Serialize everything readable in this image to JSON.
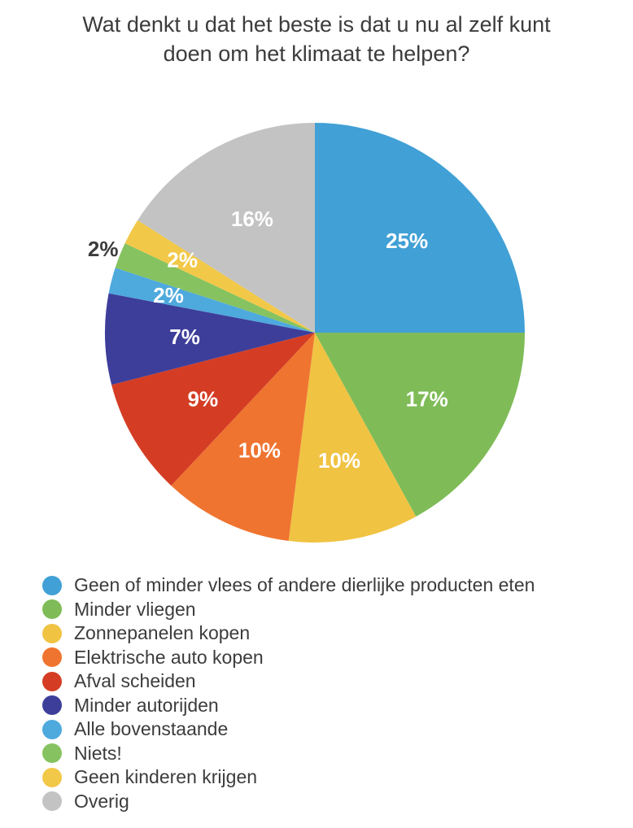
{
  "chart_data": {
    "type": "pie",
    "title": "Wat denkt u dat het beste is dat u nu al zelf kunt doen om het klimaat te helpen?",
    "categories": [
      "Geen of minder vlees of andere dierlijke producten eten",
      "Minder vliegen",
      "Zonnepanelen kopen",
      "Elektrische auto kopen",
      "Afval scheiden",
      "Minder autorijden",
      "Alle bovenstaande",
      "Niets!",
      "Geen kinderen krijgen",
      "Overig"
    ],
    "values": [
      25,
      17,
      10,
      10,
      9,
      7,
      2,
      2,
      2,
      16
    ],
    "labels": [
      "25%",
      "17%",
      "10%",
      "10%",
      "9%",
      "7%",
      "2%",
      "2%",
      "2%",
      "16%"
    ],
    "colors": [
      "#41a0d6",
      "#7fbc58",
      "#f0c343",
      "#ef7430",
      "#d43d24",
      "#3d3e9a",
      "#4ea9dd",
      "#86c360",
      "#f2c848",
      "#c3c3c3"
    ],
    "legend_position": "bottom-left",
    "start_at": "top",
    "direction": "clockwise"
  }
}
